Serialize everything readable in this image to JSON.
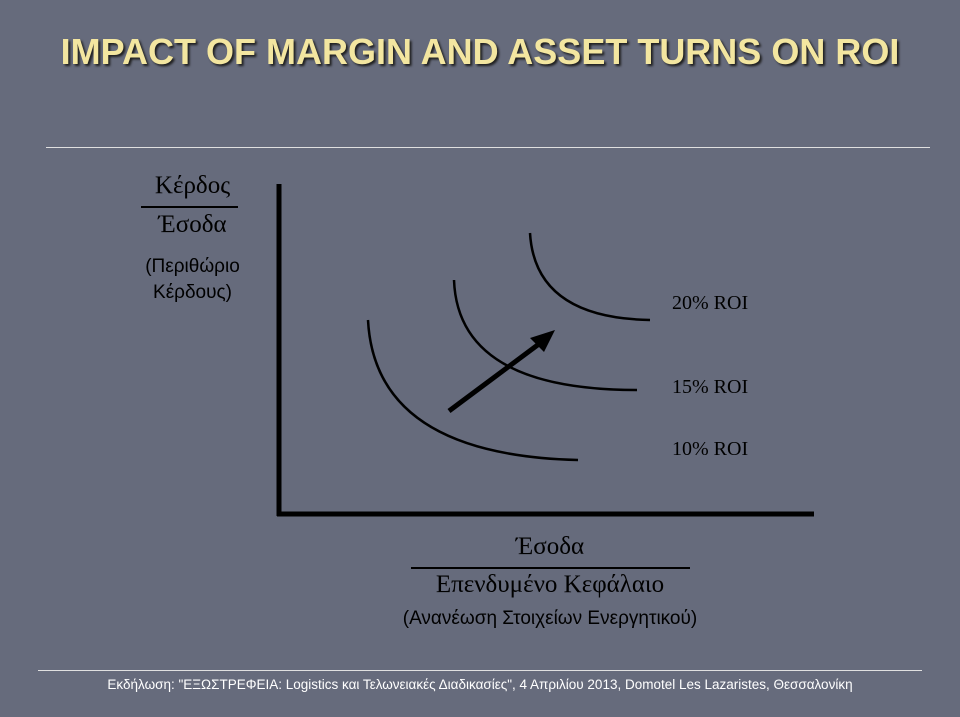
{
  "slide": {
    "title": "IMPACT OF MARGIN AND ASSET TURNS ON ROI",
    "y_axis": {
      "numerator": "Κέρδος",
      "denominator": "Έσοδα",
      "caption_line1": "(Περιθώριο",
      "caption_line2": "Κέρδους)"
    },
    "x_axis": {
      "numerator": "Έσοδα",
      "denominator": "Επενδυμένο Κεφάλαιο",
      "caption": "(Ανανέωση Στοιχείων Ενεργητικού)"
    },
    "curve_labels": [
      "20% ROI",
      "15% ROI",
      "10% ROI"
    ],
    "footer": "Εκδήλωση: \"ΕΞΩΣΤΡΕΦΕΙΑ: Logistics και Τελωνειακές Διαδικασίες\", 4 Απριλίου 2013, Domotel Les Lazaristes, Θεσσαλονίκη"
  },
  "colors": {
    "background": "#666b7c",
    "title": "#f3e6a0",
    "rule": "#e0e0e0",
    "ink": "#000000",
    "footer_text": "#ffffff"
  }
}
